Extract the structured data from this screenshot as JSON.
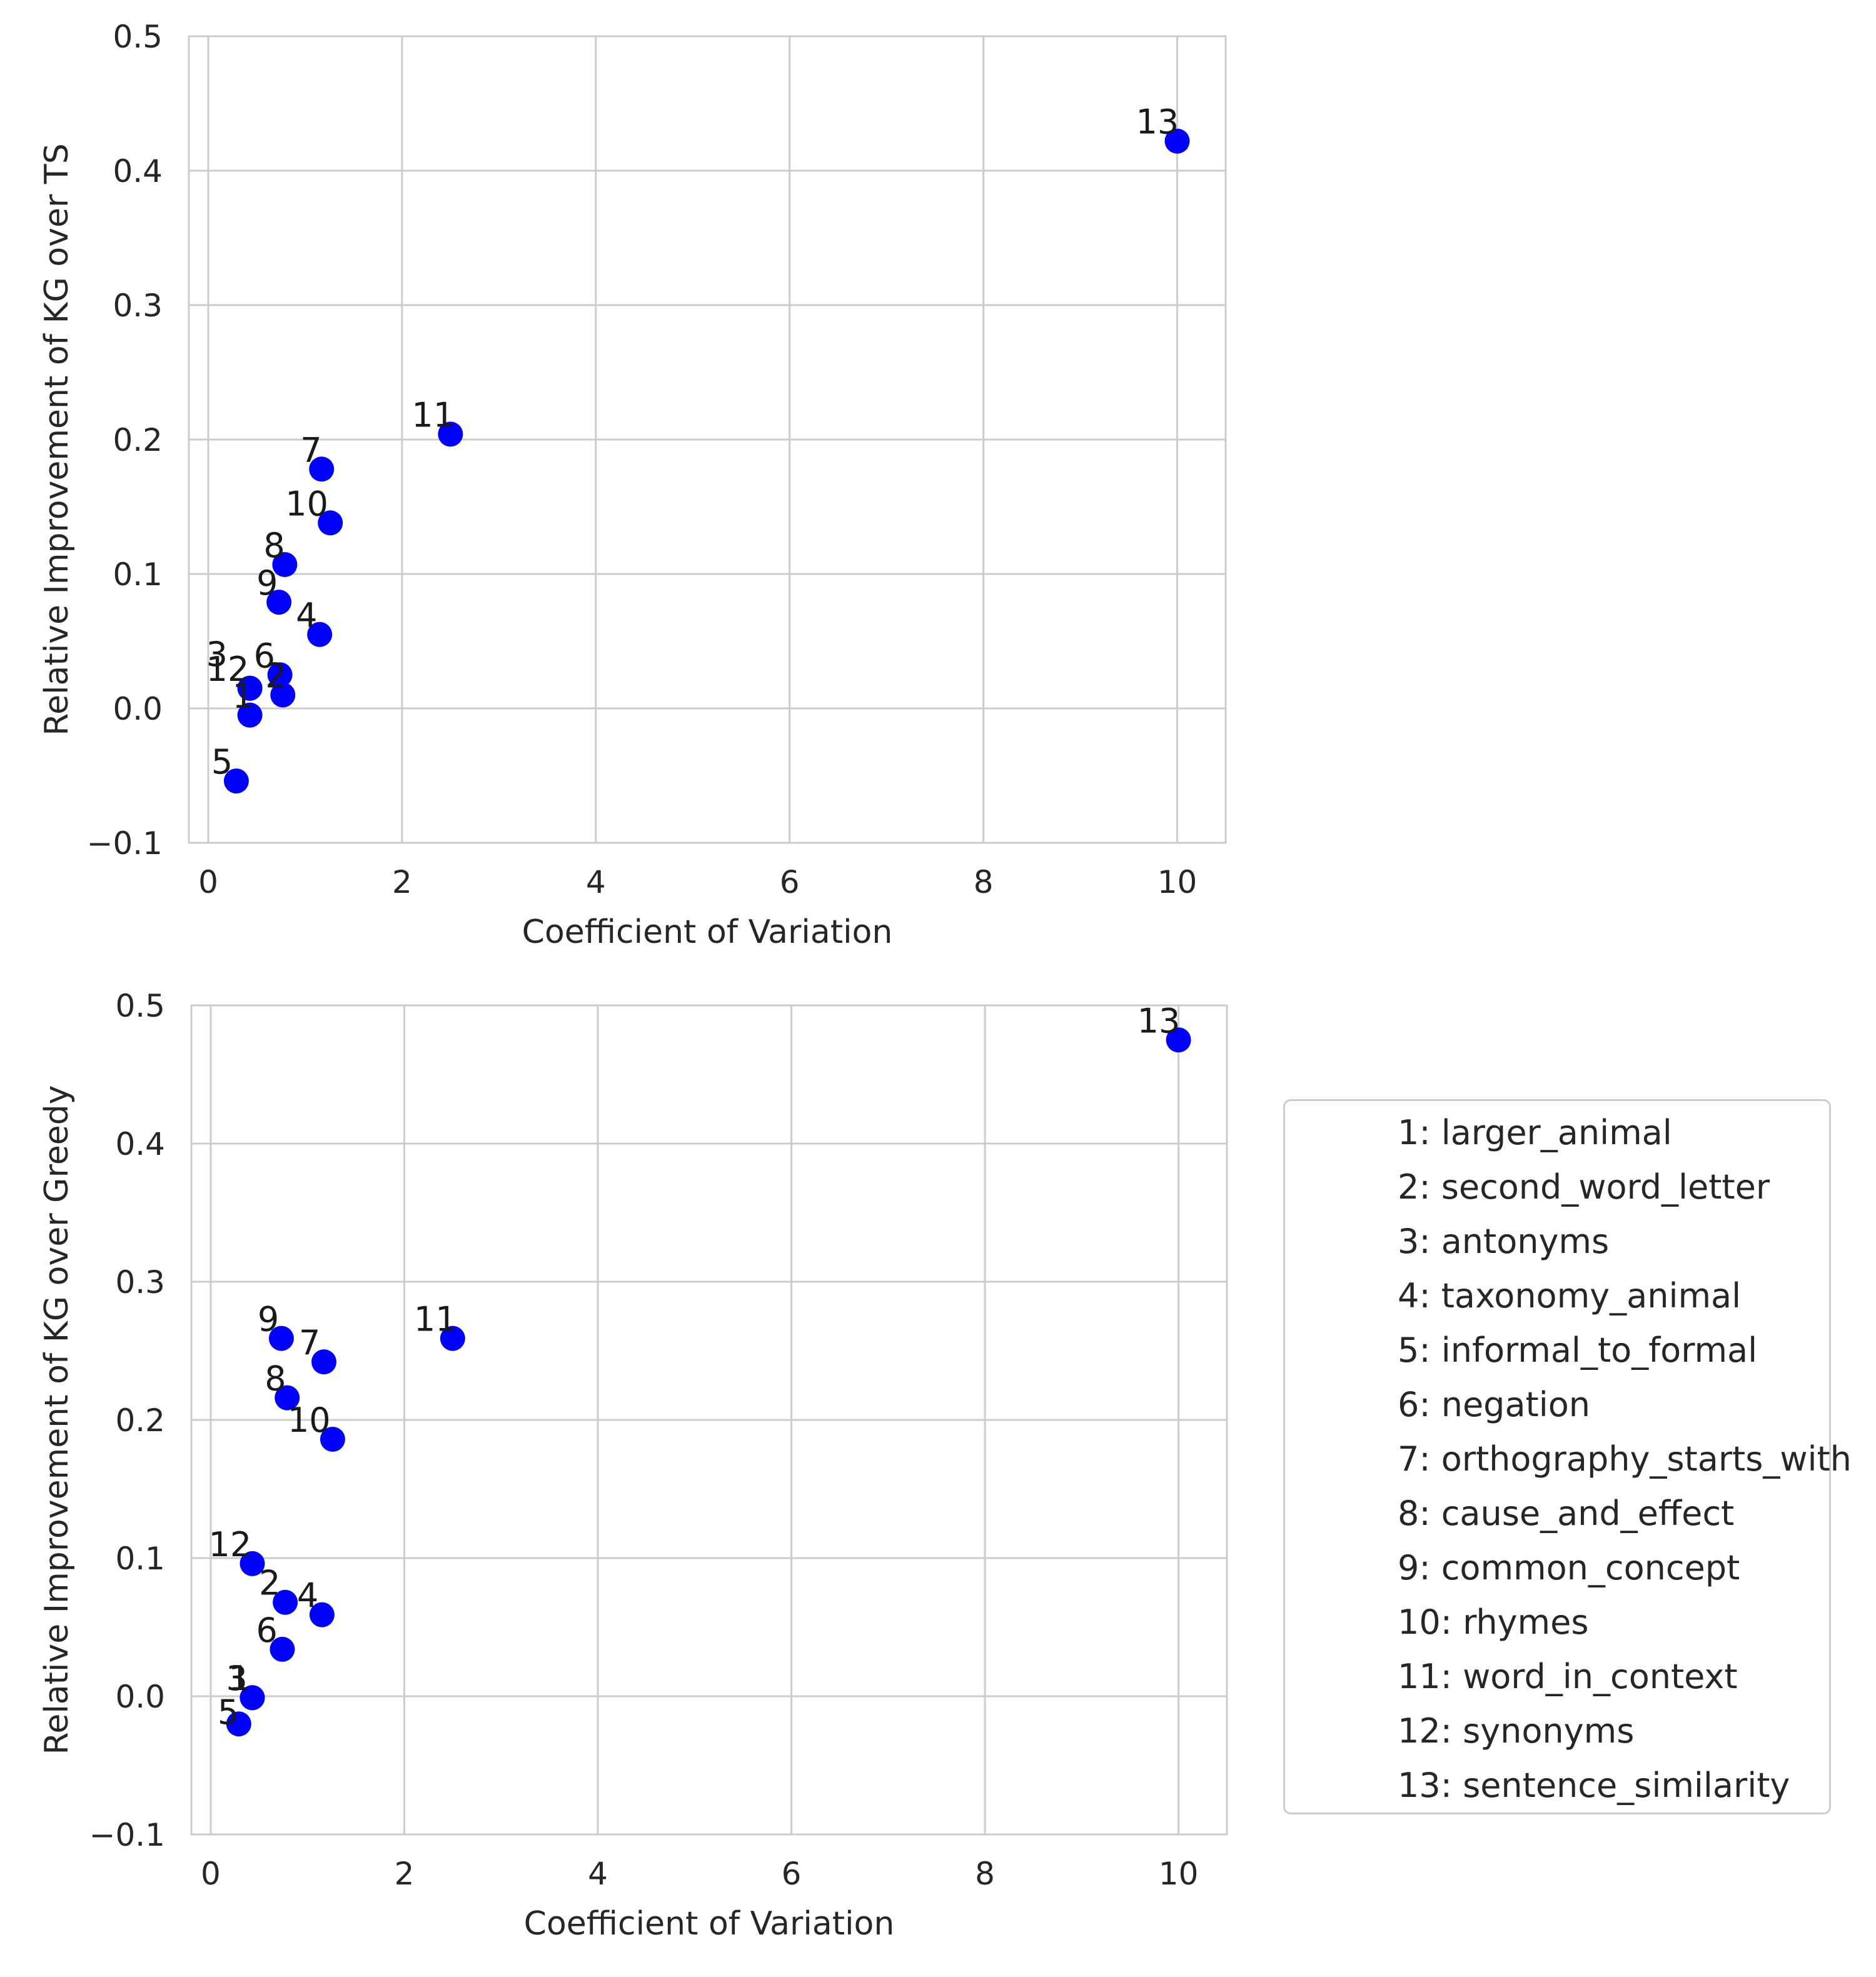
{
  "chart_data": [
    {
      "type": "scatter",
      "xlabel": "Coefficient of Variation",
      "ylabel": "Relative Improvement of KG over TS",
      "xlim": [
        -0.2,
        10.5
      ],
      "ylim": [
        -0.1,
        0.5
      ],
      "xticks": [
        0,
        2,
        4,
        6,
        8,
        10
      ],
      "yticks": [
        -0.1,
        0.0,
        0.1,
        0.2,
        0.3,
        0.4,
        0.5
      ],
      "ytick_labels": [
        "−0.1",
        "0.0",
        "0.1",
        "0.2",
        "0.3",
        "0.4",
        "0.5"
      ],
      "grid": true,
      "color": "#0000ff",
      "points": [
        {
          "label": "1",
          "x": 0.43,
          "y": -0.005
        },
        {
          "label": "2",
          "x": 0.77,
          "y": 0.01
        },
        {
          "label": "3",
          "x": 0.43,
          "y": 0.015
        },
        {
          "label": "4",
          "x": 1.15,
          "y": 0.055
        },
        {
          "label": "5",
          "x": 0.29,
          "y": -0.054
        },
        {
          "label": "6",
          "x": 0.74,
          "y": 0.025
        },
        {
          "label": "7",
          "x": 1.17,
          "y": 0.178
        },
        {
          "label": "8",
          "x": 0.79,
          "y": 0.107
        },
        {
          "label": "9",
          "x": 0.73,
          "y": 0.079
        },
        {
          "label": "10",
          "x": 1.26,
          "y": 0.138
        },
        {
          "label": "11",
          "x": 2.5,
          "y": 0.204
        },
        {
          "label": "12",
          "x": 0.43,
          "y": 0.015
        },
        {
          "label": "13",
          "x": 10.0,
          "y": 0.422
        }
      ]
    },
    {
      "type": "scatter",
      "xlabel": "Coefficient of Variation",
      "ylabel": "Relative Improvement of KG over Greedy",
      "xlim": [
        -0.2,
        10.5
      ],
      "ylim": [
        -0.1,
        0.5
      ],
      "xticks": [
        0,
        2,
        4,
        6,
        8,
        10
      ],
      "yticks": [
        -0.1,
        0.0,
        0.1,
        0.2,
        0.3,
        0.4,
        0.5
      ],
      "ytick_labels": [
        "−0.1",
        "0.0",
        "0.1",
        "0.2",
        "0.3",
        "0.4",
        "0.5"
      ],
      "grid": true,
      "color": "#0000ff",
      "points": [
        {
          "label": "1",
          "x": 0.43,
          "y": -0.001
        },
        {
          "label": "2",
          "x": 0.77,
          "y": 0.068
        },
        {
          "label": "3",
          "x": 0.43,
          "y": -0.001
        },
        {
          "label": "4",
          "x": 1.15,
          "y": 0.059
        },
        {
          "label": "5",
          "x": 0.29,
          "y": -0.02
        },
        {
          "label": "6",
          "x": 0.74,
          "y": 0.034
        },
        {
          "label": "7",
          "x": 1.17,
          "y": 0.242
        },
        {
          "label": "8",
          "x": 0.79,
          "y": 0.216
        },
        {
          "label": "9",
          "x": 0.73,
          "y": 0.259
        },
        {
          "label": "10",
          "x": 1.26,
          "y": 0.186
        },
        {
          "label": "11",
          "x": 2.5,
          "y": 0.259
        },
        {
          "label": "12",
          "x": 0.43,
          "y": 0.096
        },
        {
          "label": "13",
          "x": 10.0,
          "y": 0.475
        }
      ]
    }
  ],
  "legend": {
    "placement": "right of lower plot",
    "entries": [
      "1: larger_animal",
      "2: second_word_letter",
      "3: antonyms",
      "4: taxonomy_animal",
      "5: informal_to_formal",
      "6: negation",
      "7: orthography_starts_with",
      "8: cause_and_effect",
      "9: common_concept",
      "10: rhymes",
      "11: word_in_context",
      "12: synonyms",
      "13: sentence_similarity"
    ]
  }
}
